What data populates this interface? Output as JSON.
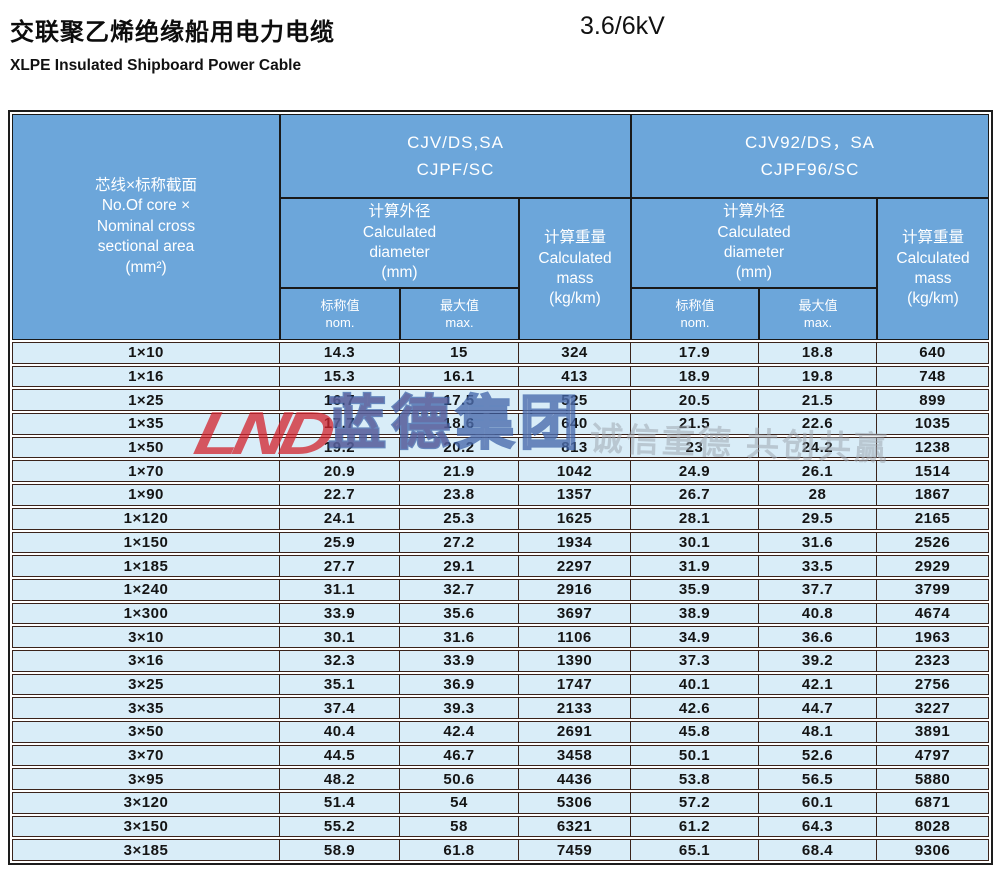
{
  "header": {
    "title_zh": "交联聚乙烯绝缘船用电力电缆",
    "voltage": "3.6/6kV",
    "title_en": "XLPE Insulated  Shipboard Power Cable"
  },
  "table": {
    "spec_lines": [
      "芯线×标称截面",
      "No.Of core ×",
      "Nominal cross",
      "sectional area",
      "(mm²)"
    ],
    "group1_lines": [
      "CJV/DS,SA",
      "CJPF/SC"
    ],
    "group2_lines": [
      "CJV92/DS，SA",
      "CJPF96/SC"
    ],
    "diameter_lines": [
      "计算外径",
      "Calculated",
      "diameter",
      "(mm)"
    ],
    "mass_lines": [
      "计算重量",
      "Calculated",
      "mass",
      "(kg/km)"
    ],
    "nom_lines": [
      "标称值",
      "nom."
    ],
    "max_lines": [
      "最大值",
      "max."
    ],
    "rows": [
      [
        "1×10",
        "14.3",
        "15",
        "324",
        "17.9",
        "18.8",
        "640"
      ],
      [
        "1×16",
        "15.3",
        "16.1",
        "413",
        "18.9",
        "19.8",
        "748"
      ],
      [
        "1×25",
        "16.7",
        "17.5",
        "525",
        "20.5",
        "21.5",
        "899"
      ],
      [
        "1×35",
        "17.7",
        "18.6",
        "640",
        "21.5",
        "22.6",
        "1035"
      ],
      [
        "1×50",
        "19.2",
        "20.2",
        "813",
        "23",
        "24.2",
        "1238"
      ],
      [
        "1×70",
        "20.9",
        "21.9",
        "1042",
        "24.9",
        "26.1",
        "1514"
      ],
      [
        "1×90",
        "22.7",
        "23.8",
        "1357",
        "26.7",
        "28",
        "1867"
      ],
      [
        "1×120",
        "24.1",
        "25.3",
        "1625",
        "28.1",
        "29.5",
        "2165"
      ],
      [
        "1×150",
        "25.9",
        "27.2",
        "1934",
        "30.1",
        "31.6",
        "2526"
      ],
      [
        "1×185",
        "27.7",
        "29.1",
        "2297",
        "31.9",
        "33.5",
        "2929"
      ],
      [
        "1×240",
        "31.1",
        "32.7",
        "2916",
        "35.9",
        "37.7",
        "3799"
      ],
      [
        "1×300",
        "33.9",
        "35.6",
        "3697",
        "38.9",
        "40.8",
        "4674"
      ],
      [
        "3×10",
        "30.1",
        "31.6",
        "1106",
        "34.9",
        "36.6",
        "1963"
      ],
      [
        "3×16",
        "32.3",
        "33.9",
        "1390",
        "37.3",
        "39.2",
        "2323"
      ],
      [
        "3×25",
        "35.1",
        "36.9",
        "1747",
        "40.1",
        "42.1",
        "2756"
      ],
      [
        "3×35",
        "37.4",
        "39.3",
        "2133",
        "42.6",
        "44.7",
        "3227"
      ],
      [
        "3×50",
        "40.4",
        "42.4",
        "2691",
        "45.8",
        "48.1",
        "3891"
      ],
      [
        "3×70",
        "44.5",
        "46.7",
        "3458",
        "50.1",
        "52.6",
        "4797"
      ],
      [
        "3×95",
        "48.2",
        "50.6",
        "4436",
        "53.8",
        "56.5",
        "5880"
      ],
      [
        "3×120",
        "51.4",
        "54",
        "5306",
        "57.2",
        "60.1",
        "6871"
      ],
      [
        "3×150",
        "55.2",
        "58",
        "6321",
        "61.2",
        "64.3",
        "8028"
      ],
      [
        "3×185",
        "58.9",
        "61.8",
        "7459",
        "65.1",
        "68.4",
        "9306"
      ]
    ]
  },
  "watermark": {
    "logo": "LND",
    "brand_left": "蓝德",
    "brand_right": "集团",
    "slogan": "诚信重德  共创共赢"
  },
  "colors": {
    "header_blue": "#6CA6DA",
    "row_bg": "#D9EDF8",
    "border_header": "#1D1D1D",
    "border_body": "#3A231B",
    "watermark_red": "#D32128"
  }
}
